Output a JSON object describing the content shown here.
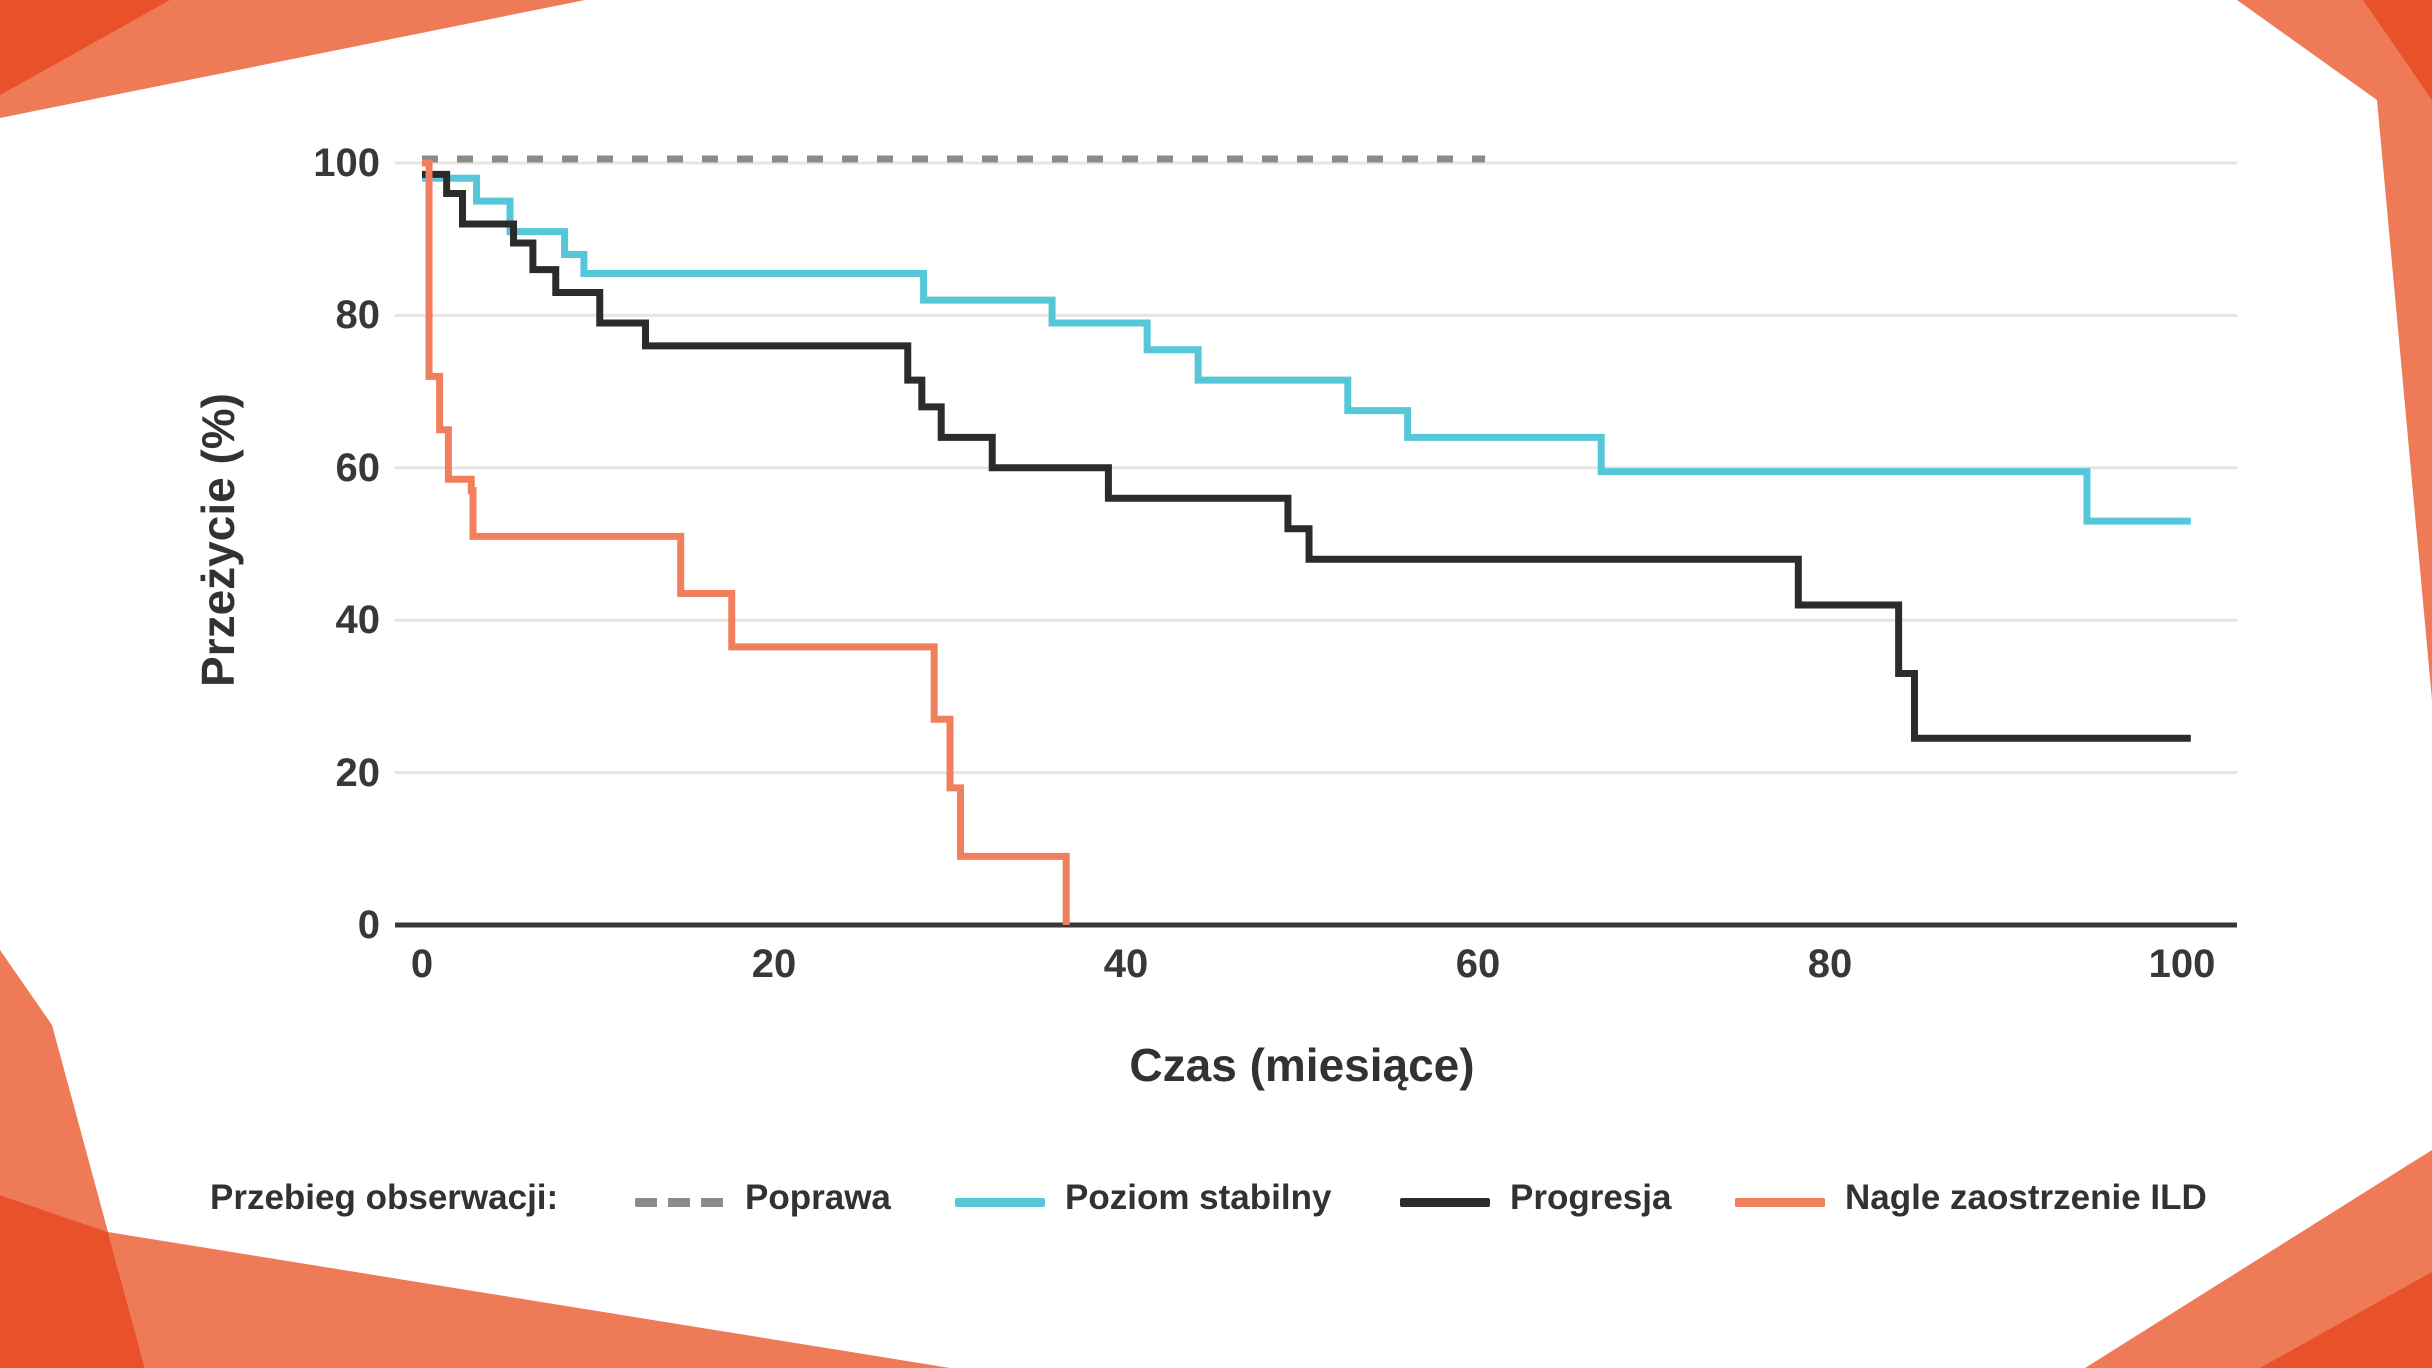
{
  "page": {
    "background": "#ffffff",
    "decoration_colors": {
      "salmon": "#EF7A58",
      "dark_red": "#E8512A"
    }
  },
  "chart_data": {
    "type": "line",
    "subtype": "kaplan-meier-step-survival",
    "title": "",
    "xlabel": "Czas (miesiące)",
    "ylabel": "Przeżycie (%)",
    "xlim": [
      0,
      100
    ],
    "ylim": [
      0,
      100
    ],
    "x_ticks": [
      0,
      20,
      40,
      60,
      80,
      100
    ],
    "y_ticks": [
      0,
      20,
      40,
      60,
      80,
      100
    ],
    "x_tick_labels": [
      "0",
      "20",
      "40",
      "60",
      "80",
      "100"
    ],
    "y_tick_labels": [
      "0",
      "20",
      "40",
      "60",
      "80",
      "100"
    ],
    "grid": "horizontal-light",
    "grid_color": "#e8e5e0",
    "axis_color": "#3a3836",
    "legend_title": "Przebieg obserwacji:",
    "legend_position": "bottom",
    "series": [
      {
        "name": "Poprawa",
        "color": "#8d8b88",
        "style": "dashed",
        "end_month": 60.4,
        "points": [
          [
            0,
            100
          ]
        ]
      },
      {
        "name": "Poziom stabilny",
        "color": "#56c7d8",
        "style": "solid",
        "end_month": 100.5,
        "points": [
          [
            0,
            98
          ],
          [
            3.1,
            95
          ],
          [
            5,
            91
          ],
          [
            8.1,
            88
          ],
          [
            9.2,
            85.5
          ],
          [
            28.5,
            82
          ],
          [
            35.8,
            79
          ],
          [
            41.2,
            75.5
          ],
          [
            44.1,
            71.5
          ],
          [
            52.6,
            67.5
          ],
          [
            56,
            64
          ],
          [
            67,
            59.5
          ],
          [
            94.6,
            53
          ]
        ]
      },
      {
        "name": "Progresja",
        "color": "#2d2b2a",
        "style": "solid",
        "end_month": 100.5,
        "points": [
          [
            0,
            98.5
          ],
          [
            1.4,
            96
          ],
          [
            2.3,
            92
          ],
          [
            5.2,
            89.5
          ],
          [
            6.3,
            86
          ],
          [
            7.6,
            83
          ],
          [
            10.1,
            79
          ],
          [
            12.7,
            76
          ],
          [
            27.6,
            71.5
          ],
          [
            28.4,
            68
          ],
          [
            29.5,
            64
          ],
          [
            32.4,
            60
          ],
          [
            39,
            56
          ],
          [
            49.2,
            52
          ],
          [
            50.4,
            48
          ],
          [
            78.2,
            42
          ],
          [
            83.9,
            33
          ],
          [
            84.8,
            24.5
          ]
        ]
      },
      {
        "name": "Nagle zaostrzenie ILD",
        "color": "#ef7f5d",
        "style": "solid",
        "end_month": 36.6,
        "points": [
          [
            0,
            100
          ],
          [
            0.4,
            72
          ],
          [
            1,
            65
          ],
          [
            1.5,
            58.5
          ],
          [
            2.8,
            57
          ],
          [
            2.9,
            51
          ],
          [
            14.7,
            43.5
          ],
          [
            17.6,
            36.5
          ],
          [
            29.1,
            27
          ],
          [
            30,
            18
          ],
          [
            30.6,
            9
          ],
          [
            36.6,
            0
          ]
        ]
      }
    ]
  }
}
